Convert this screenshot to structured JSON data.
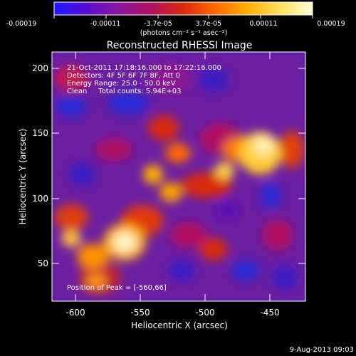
{
  "colorbar": {
    "tick_labels": [
      "-0.00019",
      "-0.00011",
      "-3.7e-05",
      "3.7e-05",
      "0.00011",
      "0.00019"
    ],
    "unit_label": "(photons cm⁻² s⁻¹ asec⁻²)",
    "colors": [
      "#1a1aff",
      "#5a0bd0",
      "#8a15a0",
      "#b01060",
      "#d82a10",
      "#ff6a00",
      "#ffb000",
      "#ffe060",
      "#fffcd8"
    ]
  },
  "plot": {
    "title": "Reconstructed RHESSI Image",
    "xlabel": "Heliocentric X (arcsec)",
    "ylabel": "Heliocentric Y (arcsec)",
    "xlim": [
      -618,
      -423
    ],
    "ylim": [
      18,
      212
    ],
    "x_ticks": [
      "-600",
      "-550",
      "-500",
      "-450"
    ],
    "y_ticks": [
      "50",
      "100",
      "150",
      "200"
    ],
    "info_lines": [
      "21-Oct-2011 17:18:16.000 to 17:22:16.000",
      "Detectors: 4F 5F 6F 7F 8F, Att 0",
      "Energy Range: 25.0 - 50.0 keV",
      "Clean     Total counts: 5.94E+03"
    ],
    "peak_label": "Position of Peak = [-560,66]"
  },
  "footer": {
    "timestamp": "9-Aug-2013 09:03"
  }
}
